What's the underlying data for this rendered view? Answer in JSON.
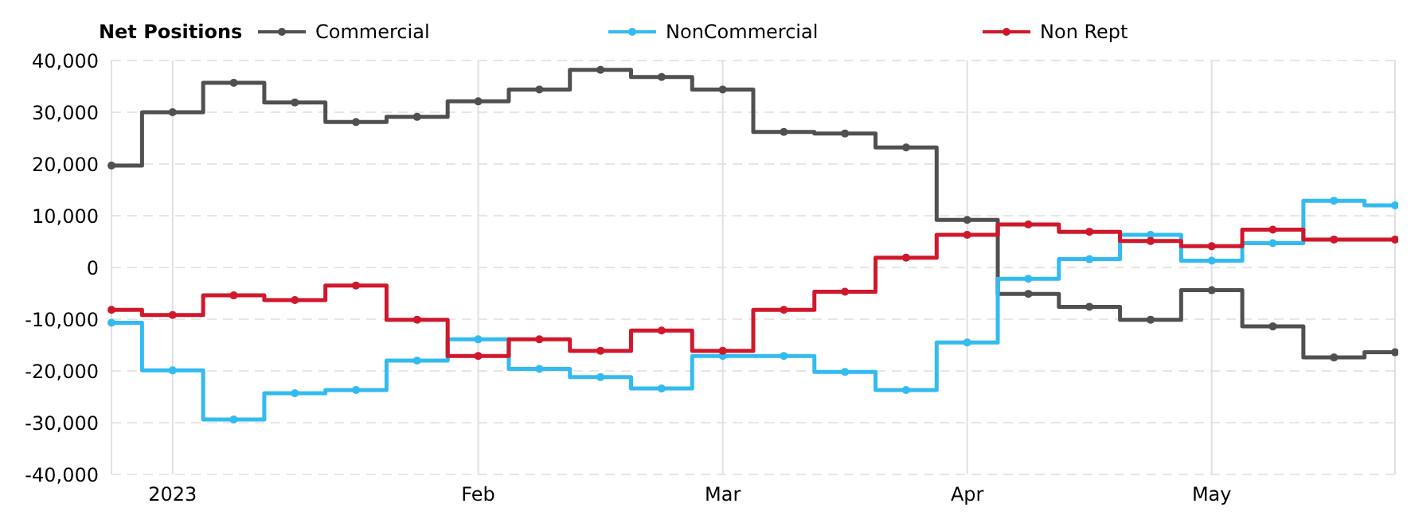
{
  "chart_data": {
    "type": "step",
    "legend_title": "Net Positions",
    "legend": "top",
    "grid": true,
    "marker": "circle",
    "categories": [
      null,
      "2023",
      null,
      null,
      null,
      null,
      "Feb",
      null,
      null,
      null,
      "Mar",
      null,
      null,
      null,
      "Apr",
      null,
      null,
      null,
      "May",
      null,
      null,
      null
    ],
    "ylim": [
      -40000,
      40000
    ],
    "yticks": [
      {
        "value": -40000,
        "label": "-40,000"
      },
      {
        "value": -30000,
        "label": "-30,000"
      },
      {
        "value": -20000,
        "label": "-20,000"
      },
      {
        "value": -10000,
        "label": "-10,000"
      },
      0,
      {
        "value": 10000,
        "label": "10,000"
      },
      {
        "value": 20000,
        "label": "20,000"
      },
      {
        "value": 30000,
        "label": "30,000"
      },
      {
        "value": 40000,
        "label": "40,000"
      }
    ],
    "series": [
      {
        "name": "Commercial",
        "color": "#505050",
        "values": [
          19700,
          30000,
          35700,
          31900,
          28100,
          29100,
          32100,
          34400,
          38200,
          36800,
          34400,
          26200,
          25900,
          23200,
          9200,
          -5100,
          -7600,
          -10100,
          -4400,
          -11400,
          -17400,
          -16400
        ]
      },
      {
        "name": "NonCommercial",
        "color": "#33bbf0",
        "values": [
          -10700,
          -19900,
          -29400,
          -24300,
          -23700,
          -18000,
          -13900,
          -19600,
          -21200,
          -23400,
          -17100,
          -17100,
          -20200,
          -23700,
          -14500,
          -2200,
          1600,
          6300,
          1300,
          4700,
          12900,
          12000
        ]
      },
      {
        "name": "Non Rept",
        "color": "#d0182c",
        "values": [
          -8200,
          -9200,
          -5400,
          -6300,
          -3500,
          -10100,
          -17100,
          -13900,
          -16100,
          -12200,
          -16100,
          -8200,
          -4700,
          1900,
          6300,
          8300,
          6900,
          5100,
          4100,
          7300,
          5400,
          5400
        ]
      }
    ]
  }
}
